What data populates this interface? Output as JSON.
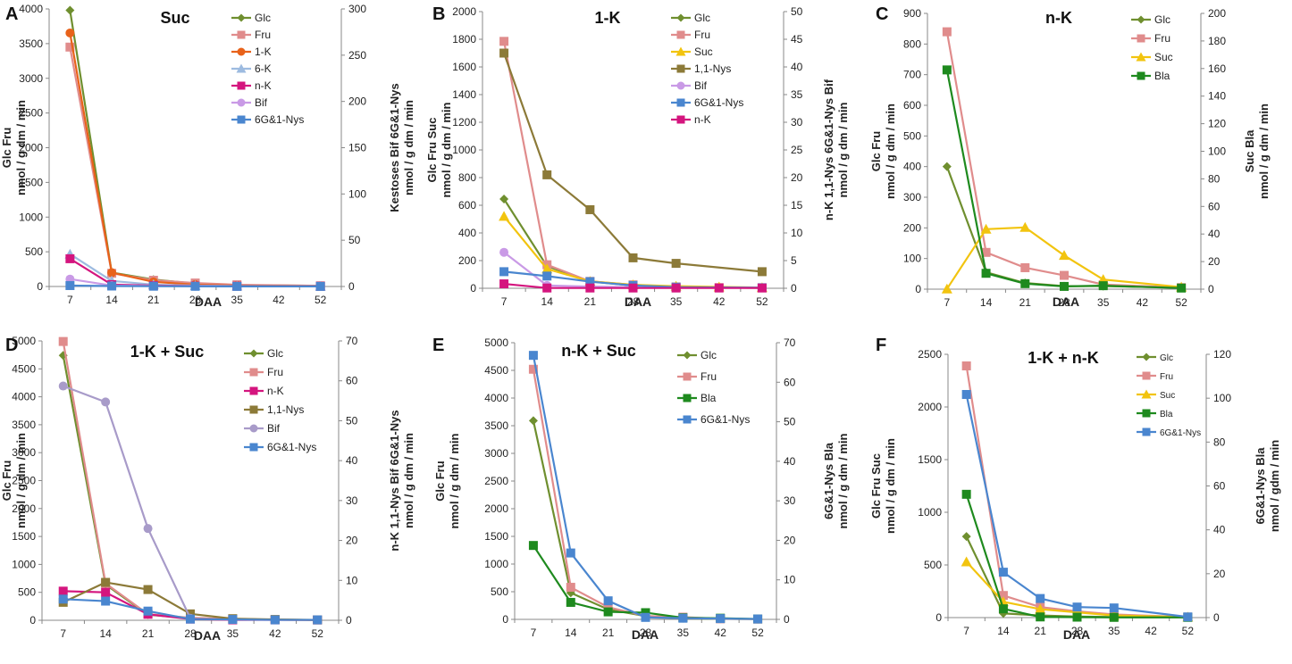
{
  "chart_data": [
    {
      "type": "line",
      "panel_letter": "A",
      "title": "Suc",
      "xlabel": "DAA",
      "x": [
        7,
        14,
        21,
        28,
        35,
        42,
        52
      ],
      "x_tick_labels": [
        "7",
        "14",
        "21",
        "28",
        "35",
        "42",
        "52"
      ],
      "y_left": {
        "lim": [
          0,
          4000
        ],
        "ticks": [
          0,
          500,
          1000,
          1500,
          2000,
          2500,
          3000,
          3500,
          4000
        ],
        "label_lines": [
          "Glc     Fru",
          "nmol / g dm / min"
        ]
      },
      "y_right": {
        "lim": [
          0,
          300
        ],
        "ticks": [
          0,
          50,
          100,
          150,
          200,
          250,
          300
        ],
        "label_lines": [
          "Kestoses   Bif   6G&1-Nys",
          "nmol / g dm / min"
        ]
      },
      "series": [
        {
          "name": "Glc",
          "axis": "left",
          "color": "#6f8f2f",
          "marker": "diamond",
          "x": [
            7,
            14,
            21,
            28,
            35,
            52
          ],
          "values": [
            3980,
            200,
            100,
            40,
            20,
            10
          ]
        },
        {
          "name": "Fru",
          "axis": "left",
          "color": "#e08c8c",
          "marker": "square",
          "x": [
            7,
            14,
            21,
            28,
            35,
            52
          ],
          "values": [
            3450,
            190,
            90,
            50,
            25,
            10
          ]
        },
        {
          "name": "1-K",
          "axis": "right",
          "color": "#e8621a",
          "marker": "circle",
          "x": [
            7,
            14,
            21,
            28,
            35,
            52
          ],
          "values": [
            274,
            15,
            5,
            2,
            1,
            0.5
          ]
        },
        {
          "name": "6-K",
          "axis": "right",
          "color": "#9dbbe0",
          "marker": "triangle",
          "x": [
            7,
            14,
            21,
            28,
            35,
            52
          ],
          "values": [
            35,
            6,
            2,
            1,
            0.5,
            0.3
          ]
        },
        {
          "name": "n-K",
          "axis": "right",
          "color": "#d4157e",
          "marker": "square",
          "x": [
            7,
            14,
            21,
            28,
            35,
            52
          ],
          "values": [
            30,
            2,
            1,
            0.5,
            0.3,
            0.2
          ]
        },
        {
          "name": "Bif",
          "axis": "right",
          "color": "#c99ae6",
          "marker": "circle",
          "x": [
            7,
            14,
            21,
            28,
            35,
            52
          ],
          "values": [
            8,
            1,
            0.5,
            0.3,
            0.2,
            0.1
          ]
        },
        {
          "name": "6G&1-Nys",
          "axis": "right",
          "color": "#4a86cf",
          "marker": "square",
          "x": [
            7,
            14,
            21,
            28,
            35,
            52
          ],
          "values": [
            1,
            0.5,
            0.3,
            0.2,
            0.1,
            0.1
          ]
        }
      ]
    },
    {
      "type": "line",
      "panel_letter": "B",
      "title": "1-K",
      "xlabel": "DAA",
      "x": [
        7,
        14,
        21,
        28,
        35,
        42,
        52
      ],
      "x_tick_labels": [
        "7",
        "14",
        "21",
        "28",
        "35",
        "42",
        "52"
      ],
      "y_left": {
        "lim": [
          0,
          2000
        ],
        "ticks": [
          0,
          200,
          400,
          600,
          800,
          1000,
          1200,
          1400,
          1600,
          1800,
          2000
        ],
        "label_lines": [
          "Glc     Fru     Suc",
          "nmol / g dm / min"
        ]
      },
      "y_right": {
        "lim": [
          0,
          50
        ],
        "ticks": [
          0,
          5,
          10,
          15,
          20,
          25,
          30,
          35,
          40,
          45,
          50
        ],
        "label_lines": [
          "n-K   1,1-Nys   6G&1-Nys   Bif",
          "nmol / g dm / min"
        ]
      },
      "series": [
        {
          "name": "Glc",
          "axis": "left",
          "color": "#6f8f2f",
          "marker": "diamond",
          "x": [
            7,
            14,
            21,
            28,
            35,
            42,
            52
          ],
          "values": [
            645,
            160,
            50,
            20,
            10,
            5,
            3
          ]
        },
        {
          "name": "Fru",
          "axis": "left",
          "color": "#e08c8c",
          "marker": "square",
          "x": [
            7,
            14,
            21,
            28,
            35,
            42,
            52
          ],
          "values": [
            1785,
            170,
            50,
            25,
            10,
            5,
            3
          ]
        },
        {
          "name": "Suc",
          "axis": "left",
          "color": "#f2c40f",
          "marker": "triangle",
          "x": [
            7,
            14,
            21,
            28,
            35,
            42,
            52
          ],
          "values": [
            520,
            140,
            50,
            25,
            15,
            10,
            5
          ]
        },
        {
          "name": "1,1-Nys",
          "axis": "right",
          "color": "#8c7a38",
          "marker": "square",
          "x": [
            7,
            14,
            21,
            28,
            35,
            52
          ],
          "values": [
            42.5,
            20.5,
            14.2,
            5.5,
            4.5,
            3.0
          ]
        },
        {
          "name": "Bif",
          "axis": "right",
          "color": "#c99ae6",
          "marker": "circle",
          "x": [
            7,
            14,
            21,
            28,
            35,
            52
          ],
          "values": [
            6.5,
            0.5,
            0.3,
            0.2,
            0.1,
            0.1
          ]
        },
        {
          "name": "6G&1-Nys",
          "axis": "right",
          "color": "#4a86cf",
          "marker": "square",
          "x": [
            7,
            14,
            21,
            28,
            35,
            52
          ],
          "values": [
            3.0,
            2.2,
            1.2,
            0.5,
            0.2,
            0.1
          ]
        },
        {
          "name": "n-K",
          "axis": "right",
          "color": "#d4157e",
          "marker": "square",
          "x": [
            7,
            14,
            21,
            28,
            35,
            42,
            52
          ],
          "values": [
            0.8,
            0.05,
            0.05,
            0.05,
            0.05,
            0.05,
            0.05
          ]
        }
      ]
    },
    {
      "type": "line",
      "panel_letter": "C",
      "title": "n-K",
      "xlabel": "DAA",
      "x": [
        7,
        14,
        21,
        28,
        35,
        42,
        52
      ],
      "x_tick_labels": [
        "7",
        "14",
        "21",
        "28",
        "35",
        "42",
        "52"
      ],
      "y_left": {
        "lim": [
          0,
          900
        ],
        "ticks": [
          0,
          100,
          200,
          300,
          400,
          500,
          600,
          700,
          800,
          900
        ],
        "label_lines": [
          "Glc     Fru",
          "nmol / g dm / min"
        ]
      },
      "y_right": {
        "lim": [
          0,
          200
        ],
        "ticks": [
          0,
          20,
          40,
          60,
          80,
          100,
          120,
          140,
          160,
          180,
          200
        ],
        "label_lines": [
          "Suc     Bla",
          "nmol / g dm / min"
        ]
      },
      "series": [
        {
          "name": "Glc",
          "axis": "left",
          "color": "#6f8f2f",
          "marker": "diamond",
          "x": [
            7,
            14,
            21,
            28,
            35,
            52
          ],
          "values": [
            400,
            55,
            20,
            10,
            10,
            5
          ]
        },
        {
          "name": "Fru",
          "axis": "left",
          "color": "#e08c8c",
          "marker": "square",
          "x": [
            7,
            14,
            21,
            28,
            35,
            52
          ],
          "values": [
            840,
            120,
            70,
            45,
            15,
            5
          ]
        },
        {
          "name": "Suc",
          "axis": "right",
          "color": "#f2c40f",
          "marker": "triangle",
          "x": [
            7,
            14,
            21,
            28,
            35,
            52
          ],
          "values": [
            0.2,
            43.5,
            44.8,
            24.5,
            7.0,
            1.5
          ]
        },
        {
          "name": "Bla",
          "axis": "right",
          "color": "#1e8a1e",
          "marker": "square",
          "x": [
            7,
            14,
            21,
            28,
            35,
            52
          ],
          "values": [
            159,
            11.5,
            4.0,
            2.0,
            2.5,
            0.8
          ]
        }
      ]
    },
    {
      "type": "line",
      "panel_letter": "D",
      "title": "1-K + Suc",
      "xlabel": "DAA",
      "x": [
        7,
        14,
        21,
        28,
        35,
        42,
        52
      ],
      "x_tick_labels": [
        "7",
        "14",
        "21",
        "28",
        "35",
        "42",
        "52"
      ],
      "y_left": {
        "lim": [
          0,
          5000
        ],
        "ticks": [
          0,
          500,
          1000,
          1500,
          2000,
          2500,
          3000,
          3500,
          4000,
          4500,
          5000
        ],
        "label_lines": [
          "Glc     Fru",
          "nmol / g dm / min"
        ]
      },
      "y_right": {
        "lim": [
          0,
          70
        ],
        "ticks": [
          0,
          10,
          20,
          30,
          40,
          50,
          60,
          70
        ],
        "label_lines": [
          "n-K   1,1-Nys   Bif   6G&1-Nys",
          "nmol / g dm / min"
        ]
      },
      "series": [
        {
          "name": "Glc",
          "axis": "left",
          "color": "#6f8f2f",
          "marker": "diamond",
          "x": [
            7,
            14,
            21,
            28,
            35,
            42,
            52
          ],
          "values": [
            4740,
            640,
            100,
            40,
            20,
            10,
            5
          ]
        },
        {
          "name": "Fru",
          "axis": "left",
          "color": "#e08c8c",
          "marker": "square",
          "x": [
            7,
            14,
            21,
            28,
            35,
            42,
            52
          ],
          "values": [
            4990,
            660,
            110,
            45,
            20,
            10,
            5
          ]
        },
        {
          "name": "n-K",
          "axis": "right",
          "color": "#d4157e",
          "marker": "square",
          "x": [
            7,
            14,
            21,
            28,
            35,
            42,
            52
          ],
          "values": [
            7.3,
            7.0,
            1.5,
            0.3,
            0.1,
            0.1,
            0.1
          ]
        },
        {
          "name": "1,1-Nys",
          "axis": "right",
          "color": "#8c7a38",
          "marker": "square",
          "x": [
            7,
            14,
            21,
            28,
            35,
            42,
            52
          ],
          "values": [
            4.5,
            9.5,
            7.7,
            1.6,
            0.4,
            0.2,
            0.1
          ]
        },
        {
          "name": "Bif",
          "axis": "right",
          "color": "#a89bc9",
          "marker": "circle",
          "x": [
            7,
            14,
            21,
            28
          ],
          "values": [
            58.7,
            54.7,
            23.0,
            0.5
          ]
        },
        {
          "name": "6G&1-Nys",
          "axis": "right",
          "color": "#4a86cf",
          "marker": "square",
          "x": [
            7,
            14,
            21,
            28,
            35,
            42,
            52
          ],
          "values": [
            5.3,
            4.8,
            2.3,
            0.3,
            0.2,
            0.1,
            0.1
          ]
        }
      ]
    },
    {
      "type": "line",
      "panel_letter": "E",
      "title": "n-K + Suc",
      "xlabel": "DAA",
      "x": [
        7,
        14,
        21,
        28,
        35,
        42,
        52
      ],
      "x_tick_labels": [
        "7",
        "14",
        "21",
        "28",
        "35",
        "42",
        "52"
      ],
      "y_left": {
        "lim": [
          0,
          5000
        ],
        "ticks": [
          0,
          500,
          1000,
          1500,
          2000,
          2500,
          3000,
          3500,
          4000,
          4500,
          5000
        ],
        "label_lines": [
          "Glc     Fru",
          "nmol / g dm / min"
        ]
      },
      "y_right": {
        "lim": [
          0,
          70
        ],
        "ticks": [
          0,
          10,
          20,
          30,
          40,
          50,
          60,
          70
        ],
        "label_lines": [
          "6G&1-Nys   Bla",
          "nmol / g dm / min"
        ]
      },
      "series": [
        {
          "name": "Glc",
          "axis": "left",
          "color": "#6f8f2f",
          "marker": "diamond",
          "x": [
            7,
            14,
            21,
            28,
            35,
            42,
            52
          ],
          "values": [
            3590,
            480,
            180,
            60,
            20,
            10,
            5
          ]
        },
        {
          "name": "Fru",
          "axis": "left",
          "color": "#e08c8c",
          "marker": "square",
          "x": [
            7,
            14,
            21,
            28,
            35,
            42,
            52
          ],
          "values": [
            4520,
            580,
            220,
            60,
            40,
            10,
            5
          ]
        },
        {
          "name": "Bla",
          "axis": "right",
          "color": "#1e8a1e",
          "marker": "square",
          "x": [
            7,
            14,
            21,
            28,
            35,
            42,
            52
          ],
          "values": [
            18.7,
            4.3,
            1.9,
            1.7,
            0.4,
            0.3,
            0.1
          ]
        },
        {
          "name": "6G&1-Nys",
          "axis": "right",
          "color": "#4a86cf",
          "marker": "square",
          "x": [
            7,
            14,
            21,
            28,
            35,
            42,
            52
          ],
          "values": [
            66.8,
            16.8,
            4.7,
            0.5,
            0.3,
            0.2,
            0.1
          ]
        }
      ]
    },
    {
      "type": "line",
      "panel_letter": "F",
      "title": "1-K + n-K",
      "xlabel": "DAA",
      "x": [
        7,
        14,
        21,
        28,
        35,
        42,
        52
      ],
      "x_tick_labels": [
        "7",
        "14",
        "21",
        "28",
        "35",
        "42",
        "52"
      ],
      "y_left": {
        "lim": [
          0,
          2500
        ],
        "ticks": [
          0,
          500,
          1000,
          1500,
          2000,
          2500
        ],
        "label_lines": [
          "Glc     Fru     Suc",
          "nmol / g dm / min"
        ]
      },
      "y_right": {
        "lim": [
          0,
          120
        ],
        "ticks": [
          0,
          20,
          40,
          60,
          80,
          100,
          120
        ],
        "label_lines": [
          "6G&1-Nys   Bla",
          "nmol / gdm / min"
        ]
      },
      "series": [
        {
          "name": "Glc",
          "axis": "left",
          "color": "#6f8f2f",
          "marker": "diamond",
          "x": [
            7,
            14,
            21,
            28,
            35,
            52
          ],
          "values": [
            770,
            40,
            20,
            10,
            5,
            3
          ]
        },
        {
          "name": "Fru",
          "axis": "left",
          "color": "#e08c8c",
          "marker": "square",
          "x": [
            7,
            14,
            21,
            28,
            35,
            52
          ],
          "values": [
            2390,
            210,
            100,
            60,
            30,
            5
          ]
        },
        {
          "name": "Suc",
          "axis": "left",
          "color": "#f2c40f",
          "marker": "triangle",
          "x": [
            7,
            14,
            21,
            28,
            35,
            52
          ],
          "values": [
            530,
            150,
            80,
            50,
            20,
            5
          ]
        },
        {
          "name": "Bla",
          "axis": "right",
          "color": "#1e8a1e",
          "marker": "square",
          "x": [
            7,
            14,
            21,
            28,
            35,
            52
          ],
          "values": [
            56.2,
            4.0,
            0.3,
            0.2,
            0.1,
            0.1
          ]
        },
        {
          "name": "6G&1-Nys",
          "axis": "right",
          "color": "#4a86cf",
          "marker": "square",
          "x": [
            7,
            14,
            21,
            28,
            35,
            52
          ],
          "values": [
            101.7,
            20.7,
            8.7,
            4.8,
            4.4,
            0.3
          ]
        }
      ]
    }
  ]
}
